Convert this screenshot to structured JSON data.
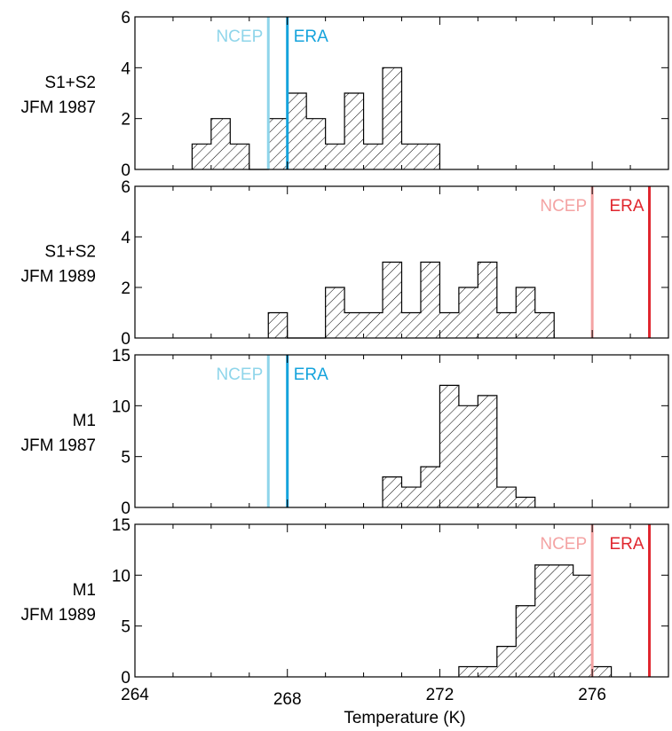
{
  "figure": {
    "xlabel": "Temperature (K)"
  },
  "colors": {
    "ncep_1987": "#8fd5ea",
    "era_1987": "#14a3dc",
    "ncep_1989": "#f4a3a3",
    "era_1989": "#e0262e",
    "bars_edge": "#000000"
  },
  "chart_data": [
    {
      "type": "bar",
      "ylabel_lines": [
        "S1+S2",
        "JFM 1987"
      ],
      "xlim": [
        264,
        278
      ],
      "ylim": [
        0,
        6
      ],
      "yticks": [
        0,
        2,
        4,
        6
      ],
      "xticks": [
        264,
        268,
        272,
        276
      ],
      "tick_labels_shown": false,
      "bin_edges": [
        265.5,
        266.0,
        266.5,
        267.0,
        267.5,
        268.0,
        268.5,
        269.0,
        269.5,
        270.0,
        270.5,
        271.0,
        271.5,
        272.0
      ],
      "counts": [
        1,
        2,
        1,
        0,
        2,
        3,
        2,
        1,
        3,
        1,
        4,
        1,
        1
      ],
      "reference_lines": [
        {
          "name": "NCEP",
          "x": 267.5,
          "color": "#8fd5ea",
          "label_side": "left"
        },
        {
          "name": "ERA",
          "x": 268.0,
          "color": "#14a3dc",
          "label_side": "right"
        }
      ]
    },
    {
      "type": "bar",
      "ylabel_lines": [
        "S1+S2",
        "JFM 1989"
      ],
      "xlim": [
        264,
        278
      ],
      "ylim": [
        0,
        6
      ],
      "yticks": [
        0,
        2,
        4,
        6
      ],
      "xticks": [
        264,
        268,
        272,
        276
      ],
      "tick_labels_shown": false,
      "bin_edges": [
        267.5,
        268.0,
        268.5,
        269.0,
        269.5,
        270.0,
        270.5,
        271.0,
        271.5,
        272.0,
        272.5,
        273.0,
        273.5,
        274.0,
        274.5,
        275.0
      ],
      "counts": [
        1,
        0,
        0,
        2,
        1,
        1,
        3,
        1,
        3,
        1,
        2,
        3,
        1,
        2,
        1
      ],
      "reference_lines": [
        {
          "name": "NCEP",
          "x": 276.0,
          "color": "#f4a3a3",
          "label_side": "left"
        },
        {
          "name": "ERA",
          "x": 277.5,
          "color": "#e0262e",
          "label_side": "left"
        }
      ]
    },
    {
      "type": "bar",
      "ylabel_lines": [
        "M1",
        "JFM 1987"
      ],
      "xlim": [
        264,
        278
      ],
      "ylim": [
        0,
        15
      ],
      "yticks": [
        0,
        5,
        10,
        15
      ],
      "xticks": [
        264,
        268,
        272,
        276
      ],
      "tick_labels_shown": false,
      "bin_edges": [
        270.5,
        271.0,
        271.5,
        272.0,
        272.5,
        273.0,
        273.5,
        274.0,
        274.5
      ],
      "counts": [
        3,
        2,
        4,
        12,
        10,
        11,
        2,
        1
      ],
      "reference_lines": [
        {
          "name": "NCEP",
          "x": 267.5,
          "color": "#8fd5ea",
          "label_side": "left"
        },
        {
          "name": "ERA",
          "x": 268.0,
          "color": "#14a3dc",
          "label_side": "right"
        }
      ]
    },
    {
      "type": "bar",
      "ylabel_lines": [
        "M1",
        "JFM 1989"
      ],
      "xlim": [
        264,
        278
      ],
      "ylim": [
        0,
        15
      ],
      "yticks": [
        0,
        5,
        10,
        15
      ],
      "xticks": [
        264,
        268,
        272,
        276
      ],
      "tick_labels_shown": true,
      "xtick_labels": [
        "264",
        "268",
        "272",
        "276"
      ],
      "bin_edges": [
        272.5,
        273.0,
        273.5,
        274.0,
        274.5,
        275.0,
        275.5,
        276.0,
        276.5
      ],
      "counts": [
        1,
        1,
        3,
        7,
        11,
        11,
        10,
        1
      ],
      "reference_lines": [
        {
          "name": "NCEP",
          "x": 276.0,
          "color": "#f4a3a3",
          "label_side": "left"
        },
        {
          "name": "ERA",
          "x": 277.5,
          "color": "#e0262e",
          "label_side": "left"
        }
      ]
    }
  ]
}
